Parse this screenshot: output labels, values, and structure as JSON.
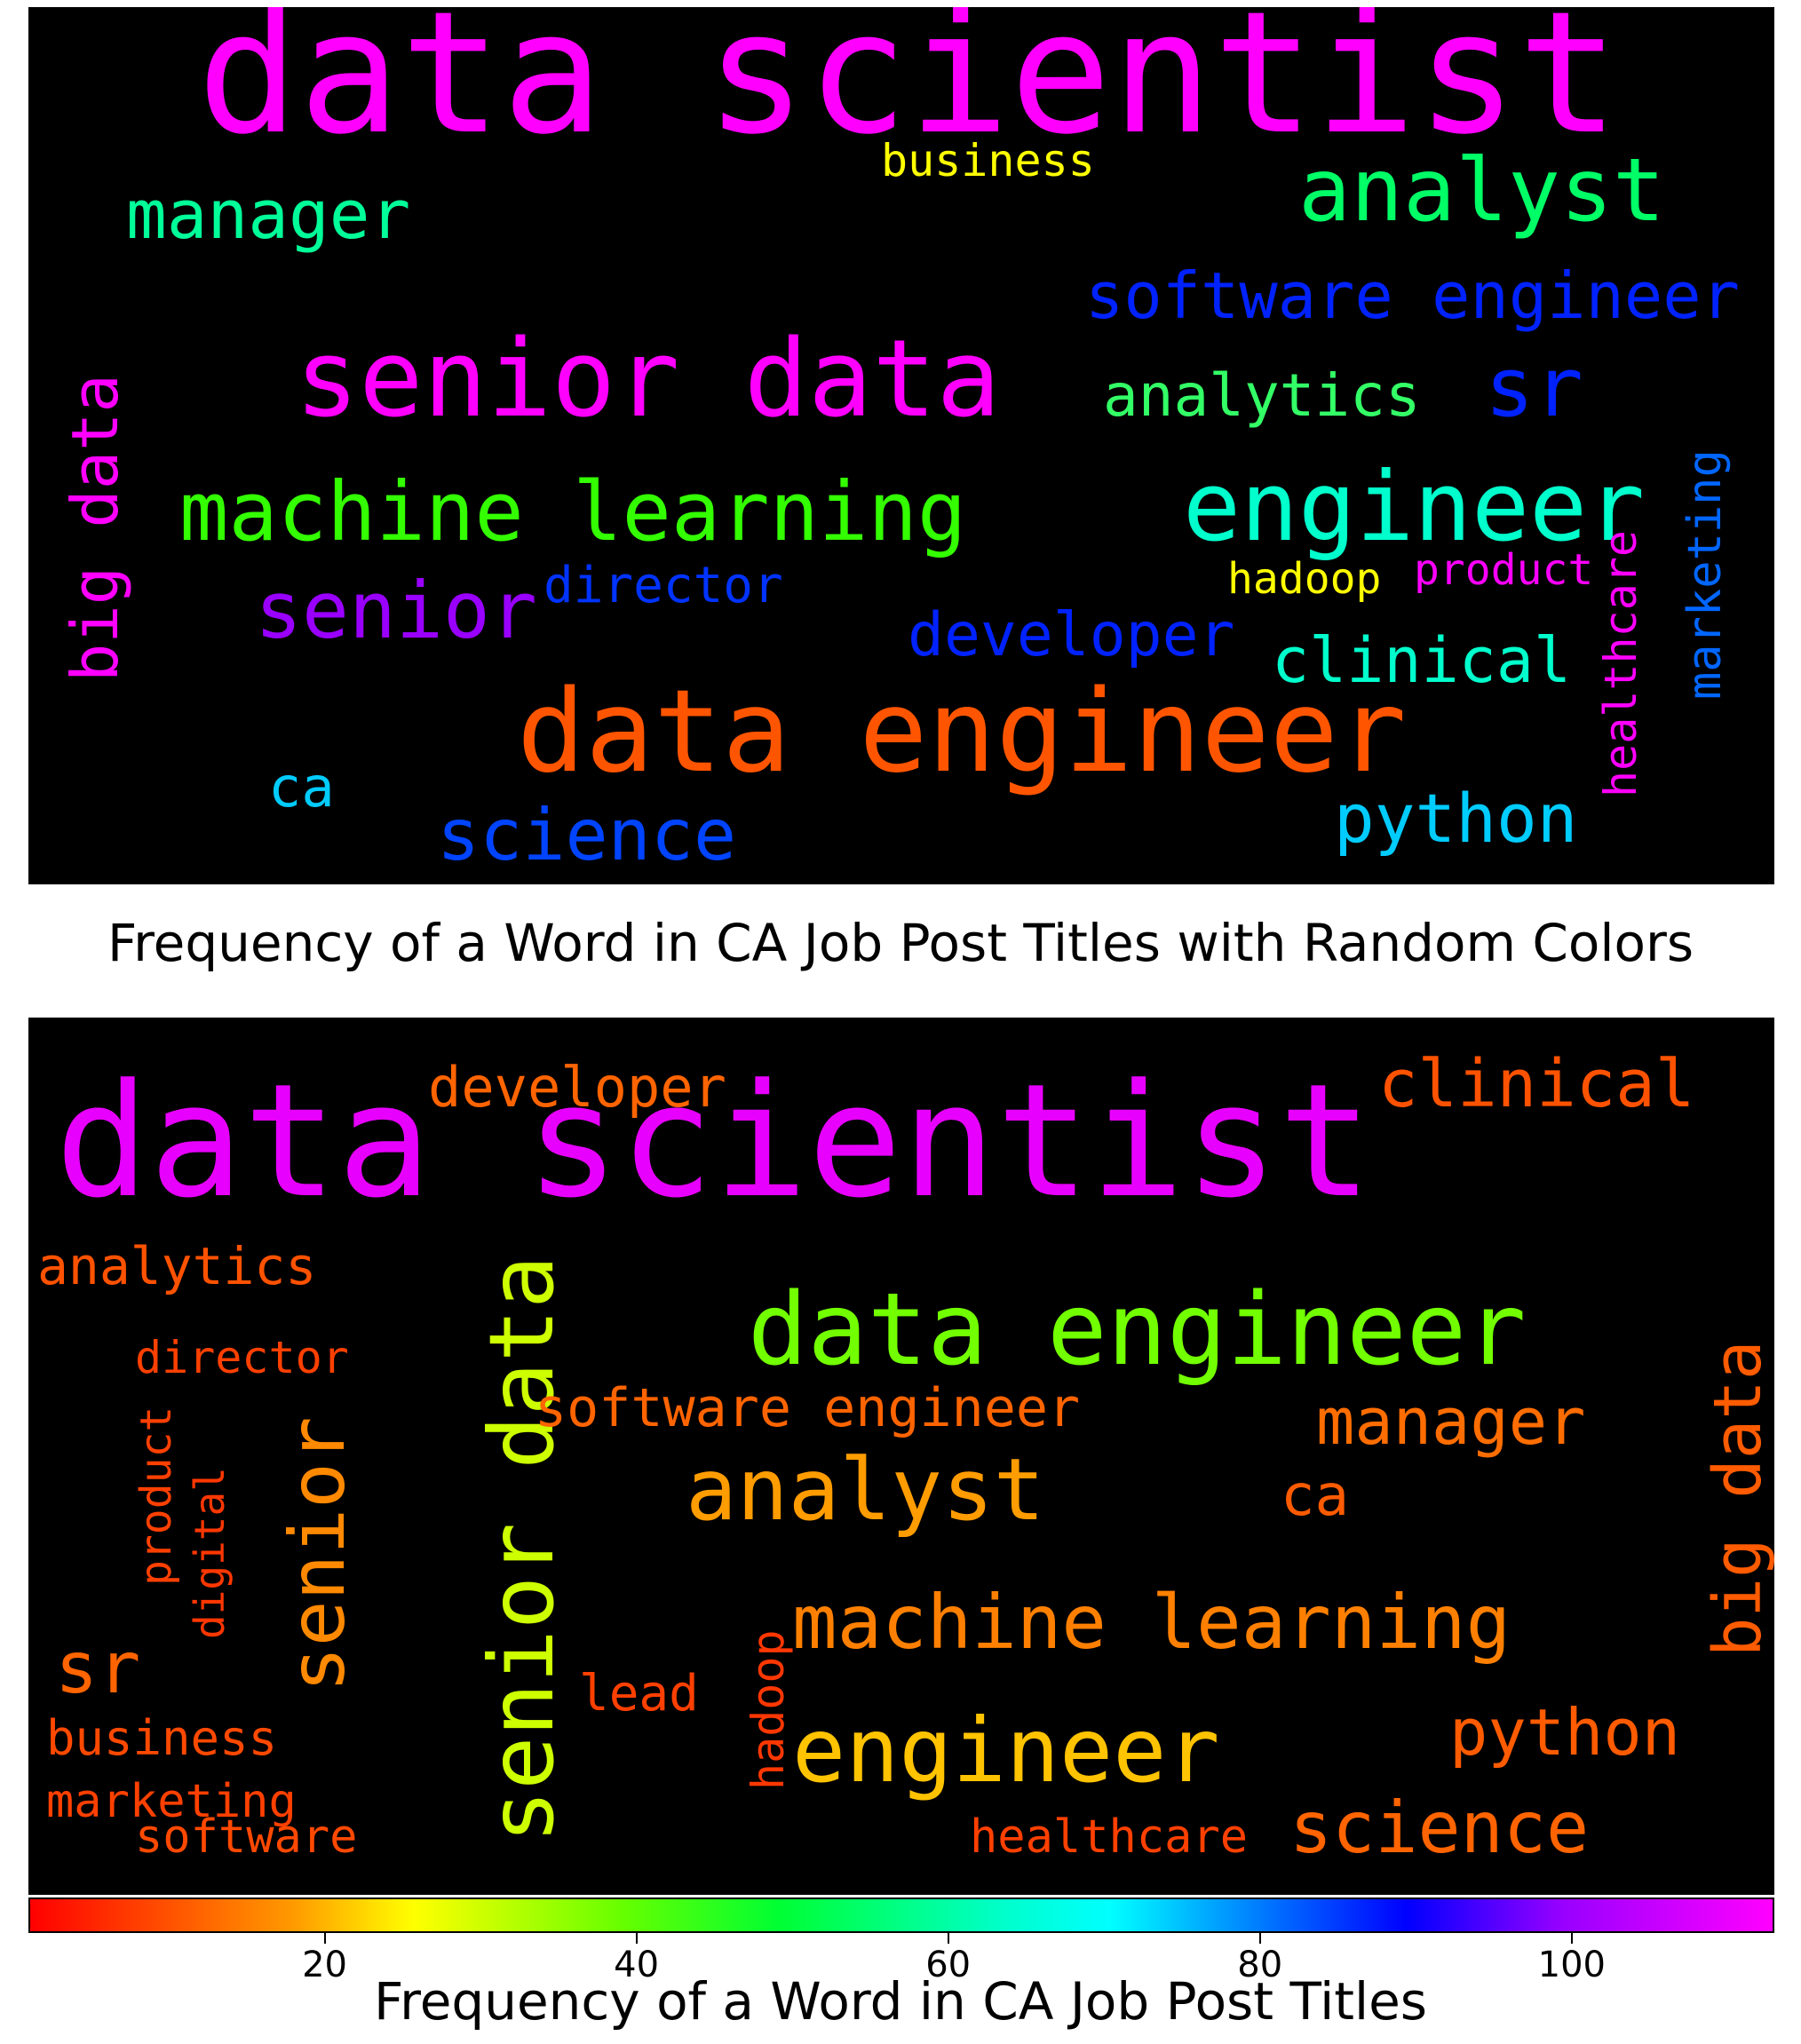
{
  "chart_data": [
    {
      "type": "wordcloud",
      "title": "Frequency of a Word in CA Job Post Titles with Random Colors",
      "words": [
        {
          "text": "data scientist",
          "color": "#ff00ff"
        },
        {
          "text": "senior data",
          "color": "#ff00ff"
        },
        {
          "text": "machine learning",
          "color": "#33ff00"
        },
        {
          "text": "data engineer",
          "color": "#ff5500"
        },
        {
          "text": "engineer",
          "color": "#00ffcc"
        },
        {
          "text": "analyst",
          "color": "#00ff66"
        },
        {
          "text": "software engineer",
          "color": "#0022ff"
        },
        {
          "text": "senior",
          "color": "#9900ff"
        },
        {
          "text": "science",
          "color": "#0044ff"
        },
        {
          "text": "python",
          "color": "#00ccff"
        },
        {
          "text": "manager",
          "color": "#00ff99"
        },
        {
          "text": "analytics",
          "color": "#33ff66"
        },
        {
          "text": "developer",
          "color": "#0022ff"
        },
        {
          "text": "clinical",
          "color": "#00ffcc"
        },
        {
          "text": "big data",
          "color": "#ff00ff"
        },
        {
          "text": "sr",
          "color": "#0022ff"
        },
        {
          "text": "director",
          "color": "#0033ff"
        },
        {
          "text": "business",
          "color": "#ffff00"
        },
        {
          "text": "healthcare",
          "color": "#ff00ff"
        },
        {
          "text": "marketing",
          "color": "#0066ff"
        },
        {
          "text": "hadoop",
          "color": "#ffff00"
        },
        {
          "text": "product",
          "color": "#ff00ff"
        },
        {
          "text": "ca",
          "color": "#00ccff"
        }
      ]
    },
    {
      "type": "wordcloud",
      "title": "Frequency of a Word in CA Job Post Titles",
      "colorbar": {
        "ticks": [
          20,
          40,
          60,
          80,
          100
        ],
        "range": [
          1,
          113
        ],
        "colormap": "gist_rainbow"
      },
      "words": [
        {
          "text": "data scientist",
          "value": 110
        },
        {
          "text": "data engineer",
          "value": 38
        },
        {
          "text": "senior data",
          "value": 30
        },
        {
          "text": "analyst",
          "value": 18
        },
        {
          "text": "machine learning",
          "value": 15
        },
        {
          "text": "engineer",
          "value": 21
        },
        {
          "text": "senior",
          "value": 16
        },
        {
          "text": "science",
          "value": 12
        },
        {
          "text": "python",
          "value": 11
        },
        {
          "text": "manager",
          "value": 13
        },
        {
          "text": "software engineer",
          "value": 12
        },
        {
          "text": "clinical",
          "value": 10
        },
        {
          "text": "analytics",
          "value": 10
        },
        {
          "text": "developer",
          "value": 12
        },
        {
          "text": "big data",
          "value": 11
        },
        {
          "text": "sr",
          "value": 12
        },
        {
          "text": "healthcare",
          "value": 8
        },
        {
          "text": "business",
          "value": 9
        },
        {
          "text": "marketing",
          "value": 8
        },
        {
          "text": "software",
          "value": 9
        },
        {
          "text": "director",
          "value": 8
        },
        {
          "text": "ca",
          "value": 11
        },
        {
          "text": "product",
          "value": 8
        },
        {
          "text": "digital",
          "value": 7
        },
        {
          "text": "lead",
          "value": 8
        },
        {
          "text": "hadoop",
          "value": 7
        }
      ]
    }
  ]
}
